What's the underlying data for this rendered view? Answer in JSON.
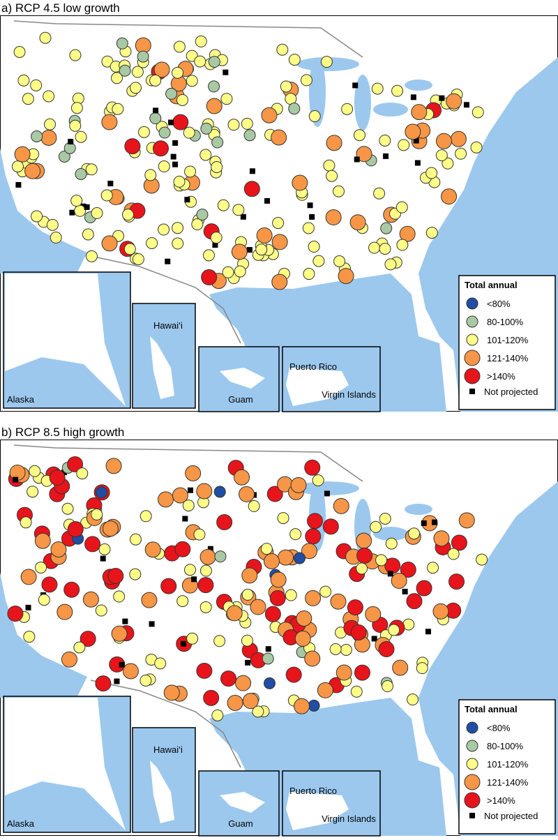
{
  "panels": [
    {
      "title": "a) RCP 4.5 low growth",
      "insets": [
        "Alaska",
        "Hawai‘i",
        "Guam",
        "Puerto Rico",
        "Virgin Islands"
      ],
      "legend": {
        "title": "Total annual",
        "items": [
          {
            "label": "<80%",
            "color": "#1f4ea3"
          },
          {
            "label": "80-100%",
            "color": "#a9c9a4"
          },
          {
            "label": "101-120%",
            "color": "#ffff88"
          },
          {
            "label": "121-140%",
            "color": "#f79646"
          },
          {
            "label": ">140%",
            "color": "#e8141b"
          },
          {
            "label": "Not projected",
            "color": "#000000"
          }
        ]
      }
    },
    {
      "title": "b) RCP 8.5 high growth",
      "insets": [
        "Alaska",
        "Hawai‘i",
        "Guam",
        "Puerto Rico",
        "Virgin Islands"
      ],
      "legend": {
        "title": "Total annual",
        "items": [
          {
            "label": "<80%",
            "color": "#1f4ea3"
          },
          {
            "label": "80-100%",
            "color": "#a9c9a4"
          },
          {
            "label": "101-120%",
            "color": "#ffff88"
          },
          {
            "label": "121-140%",
            "color": "#f79646"
          },
          {
            "label": ">140%",
            "color": "#e8141b"
          },
          {
            "label": "Not projected",
            "color": "#000000"
          }
        ]
      }
    }
  ]
}
